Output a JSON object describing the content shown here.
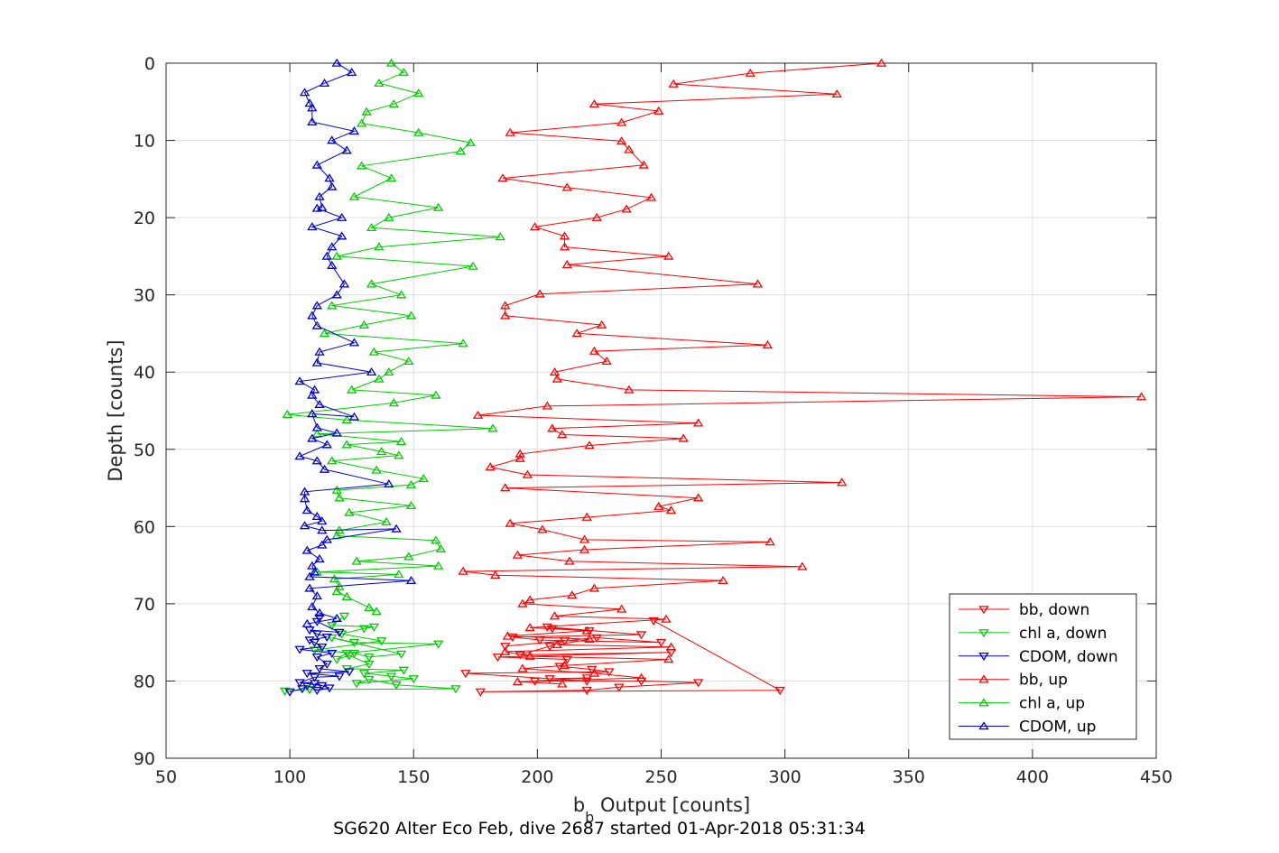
{
  "chart_data": {
    "type": "line",
    "title": "SG620 Alter Eco Feb, dive 2687 started 01-Apr-2018 05:31:34",
    "xlabel_main": "b",
    "xlabel_sub": "b",
    "xlabel_rest": " Output [counts]",
    "ylabel": "Depth [counts]",
    "xlim": [
      50,
      450
    ],
    "ylim": [
      0,
      90
    ],
    "y_reversed": true,
    "grid": true,
    "xticks": [
      50,
      100,
      150,
      200,
      250,
      300,
      350,
      400,
      450
    ],
    "yticks": [
      0,
      10,
      20,
      30,
      40,
      50,
      60,
      70,
      80,
      90
    ],
    "legend_position": "bottom-right",
    "series": [
      {
        "name": "bb, down",
        "color": "#ff0000",
        "marker": "triangle-down",
        "x": [
          247,
          298,
          177,
          220,
          233,
          265,
          242,
          220,
          199,
          220,
          205,
          171,
          229,
          222,
          209,
          212,
          184,
          254,
          193,
          205,
          211,
          187,
          224,
          250,
          201,
          190,
          242,
          204,
          221,
          206
        ],
        "y": [
          72.2,
          81.2,
          81.4,
          81.2,
          80.8,
          80.2,
          80.0,
          80.0,
          80.0,
          79.6,
          79.7,
          79.0,
          78.8,
          78.5,
          78.1,
          77.2,
          76.9,
          76.3,
          76.6,
          75.5,
          74.8,
          75.5,
          74.4,
          75.0,
          74.7,
          74.3,
          74.0,
          73.0,
          73.5,
          73.2
        ]
      },
      {
        "name": "chl a, down",
        "color": "#00cc00",
        "marker": "triangle-down",
        "x": [
          98,
          108,
          167,
          143,
          132,
          127,
          150,
          141,
          130,
          146,
          123,
          132,
          124,
          119,
          123,
          160,
          126,
          117,
          145,
          132,
          126,
          110,
          137,
          121,
          130,
          134,
          117,
          122
        ],
        "y": [
          81.3,
          81.1,
          81.0,
          80.5,
          79.8,
          80.3,
          79.7,
          79.4,
          79.0,
          78.6,
          78.4,
          77.8,
          76.7,
          77.2,
          76.4,
          75.2,
          75.0,
          74.4,
          76.5,
          76.9,
          76.4,
          76.0,
          74.8,
          73.9,
          73.2,
          73.0,
          72.8,
          71.6
        ]
      },
      {
        "name": "CDOM, down",
        "color": "#0000cc",
        "marker": "triangle-down",
        "x": [
          100,
          105,
          107,
          111,
          116,
          110,
          113,
          104,
          110,
          120,
          107,
          124,
          112,
          115,
          111,
          117,
          104,
          113,
          110,
          108,
          115,
          111,
          108,
          120,
          111,
          112
        ],
        "y": [
          81.4,
          81.0,
          80.6,
          81.2,
          80.9,
          80.3,
          80.6,
          80.2,
          79.5,
          79.4,
          79.0,
          78.8,
          78.4,
          77.8,
          76.9,
          76.4,
          75.9,
          75.6,
          75.0,
          74.7,
          74.3,
          73.9,
          73.4,
          73.7,
          72.3,
          71.8
        ]
      },
      {
        "name": "bb, up",
        "color": "#ff0000",
        "marker": "triangle-up",
        "x": [
          339,
          286,
          255,
          321,
          223,
          249,
          234,
          189,
          234,
          237,
          243,
          186,
          212,
          246,
          236,
          224,
          199,
          211,
          211,
          253,
          212,
          289,
          201,
          187,
          187,
          226,
          216,
          293,
          223,
          228,
          207,
          208,
          237,
          444,
          204,
          176,
          265,
          206,
          210,
          259,
          221,
          193,
          193,
          181,
          196,
          323,
          187,
          265,
          249,
          254,
          220,
          189,
          202,
          219,
          294,
          219,
          192,
          213,
          307,
          170,
          183,
          275,
          223,
          214,
          197,
          194,
          234,
          207,
          252,
          197,
          220,
          188,
          221,
          208,
          254,
          187,
          197,
          253,
          211,
          194,
          223,
          242,
          192,
          210
        ],
        "y": [
          0,
          1.3,
          2.7,
          4.0,
          5.3,
          6.2,
          7.7,
          9.0,
          10.1,
          11.2,
          13.2,
          14.9,
          16.1,
          17.4,
          18.9,
          20.0,
          21.2,
          22.4,
          23.8,
          25.0,
          26.1,
          28.6,
          29.9,
          31.4,
          32.7,
          33.9,
          35.0,
          36.5,
          37.3,
          38.6,
          40.0,
          40.9,
          42.3,
          43.2,
          44.4,
          45.6,
          46.6,
          47.3,
          48.1,
          48.6,
          49.5,
          50.6,
          51.2,
          52.3,
          53.3,
          54.3,
          55.0,
          56.3,
          57.4,
          57.9,
          58.8,
          59.6,
          60.4,
          61.7,
          62.0,
          63.0,
          63.7,
          64.5,
          65.2,
          65.8,
          66.3,
          67.0,
          68.0,
          68.9,
          69.5,
          70.0,
          70.7,
          71.6,
          72.0,
          73.1,
          73.5,
          74.2,
          74.6,
          75.3,
          75.6,
          76.2,
          76.8,
          77.2,
          78.0,
          78.4,
          79.0,
          79.6,
          80.1,
          80.4
        ]
      },
      {
        "name": "chl a, up",
        "color": "#00cc00",
        "marker": "triangle-up",
        "x": [
          141,
          146,
          136,
          152,
          142,
          131,
          129,
          152,
          173,
          169,
          129,
          141,
          126,
          160,
          140,
          133,
          185,
          136,
          119,
          174,
          133,
          145,
          117,
          149,
          130,
          114,
          170,
          134,
          148,
          140,
          136,
          125,
          159,
          142,
          99,
          123,
          182,
          111,
          145,
          123,
          137,
          144,
          117,
          135,
          154,
          149,
          119,
          120,
          149,
          124,
          139,
          120,
          119,
          159,
          161,
          148,
          127,
          160,
          111,
          144,
          118,
          120,
          119,
          123,
          132,
          135
        ],
        "y": [
          0,
          1.2,
          2.6,
          3.9,
          5.3,
          6.3,
          7.8,
          9.0,
          10.3,
          11.4,
          13.3,
          14.9,
          17.3,
          18.7,
          20.0,
          21.3,
          22.5,
          23.8,
          25.0,
          26.3,
          28.6,
          30.0,
          31.4,
          32.7,
          33.9,
          35.0,
          36.3,
          37.4,
          38.6,
          40.0,
          40.9,
          42.3,
          43.0,
          44.0,
          45.5,
          46.2,
          47.3,
          48.0,
          49.0,
          49.4,
          50.3,
          50.8,
          51.5,
          52.7,
          53.8,
          54.6,
          55.3,
          56.3,
          57.3,
          58.2,
          59.4,
          60.5,
          61.2,
          61.8,
          62.9,
          63.9,
          64.5,
          65.1,
          65.9,
          66.2,
          66.8,
          67.8,
          68.4,
          69.1,
          70.5,
          71.0
        ]
      },
      {
        "name": "CDOM, up",
        "color": "#0000cc",
        "marker": "triangle-up",
        "x": [
          119,
          125,
          114,
          106,
          108,
          109,
          109,
          126,
          117,
          123,
          111,
          116,
          117,
          112,
          113,
          111,
          121,
          109,
          121,
          117,
          115,
          117,
          122,
          119,
          111,
          109,
          111,
          126,
          112,
          111,
          133,
          104,
          110,
          109,
          112,
          126,
          109,
          111,
          119,
          109,
          115,
          104,
          111,
          114,
          140,
          106,
          106,
          107,
          111,
          113,
          106,
          113,
          143,
          115,
          113,
          107,
          112,
          109,
          110,
          108,
          149,
          108,
          111,
          109,
          112,
          119,
          107
        ],
        "y": [
          0,
          1.2,
          2.6,
          3.8,
          5.2,
          5.8,
          7.6,
          8.8,
          10.0,
          11.3,
          13.2,
          14.9,
          16.0,
          17.3,
          18.7,
          18.8,
          20.0,
          21.2,
          22.4,
          23.8,
          25.0,
          26.2,
          28.6,
          30.0,
          31.4,
          32.7,
          34.0,
          36.2,
          37.4,
          38.8,
          40.0,
          41.2,
          42.3,
          43.0,
          44.2,
          45.8,
          45.4,
          47.2,
          47.9,
          48.6,
          49.4,
          50.9,
          51.5,
          52.6,
          54.5,
          55.5,
          56.4,
          57.9,
          58.7,
          59.3,
          59.9,
          60.5,
          60.3,
          61.7,
          62.4,
          63.1,
          64.2,
          65.1,
          65.9,
          66.5,
          67.0,
          68.0,
          69.0,
          70.4,
          71.2,
          71.9,
          72.6
        ]
      }
    ]
  }
}
